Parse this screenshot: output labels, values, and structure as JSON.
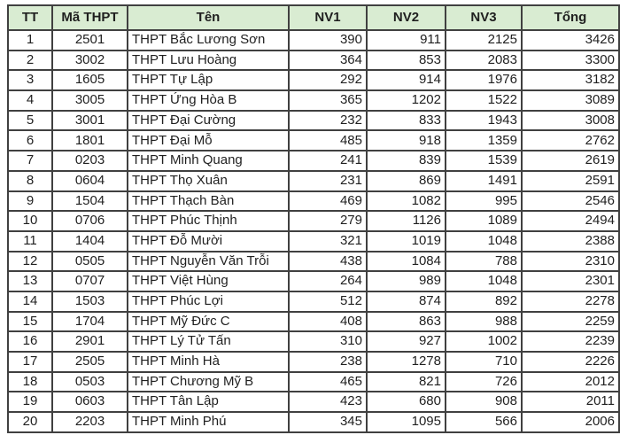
{
  "colors": {
    "header_bg": "#d9ecd2",
    "row_index_bg": "#d9ecd2",
    "border": "#404040",
    "text": "#1f1f1f"
  },
  "table": {
    "columns": [
      {
        "key": "tt",
        "label": "TT"
      },
      {
        "key": "ma",
        "label": "Mã THPT"
      },
      {
        "key": "ten",
        "label": "Tên"
      },
      {
        "key": "nv1",
        "label": "NV1"
      },
      {
        "key": "nv2",
        "label": "NV2"
      },
      {
        "key": "nv3",
        "label": "NV3"
      },
      {
        "key": "tong",
        "label": "Tổng"
      }
    ],
    "rows": [
      [
        "1",
        "2501",
        "THPT Bắc Lương Sơn",
        "390",
        "911",
        "2125",
        "3426"
      ],
      [
        "2",
        "3002",
        "THPT Lưu Hoàng",
        "364",
        "853",
        "2083",
        "3300"
      ],
      [
        "3",
        "1605",
        "THPT Tự Lập",
        "292",
        "914",
        "1976",
        "3182"
      ],
      [
        "4",
        "3005",
        "THPT Ứng Hòa B",
        "365",
        "1202",
        "1522",
        "3089"
      ],
      [
        "5",
        "3001",
        "THPT Đại Cường",
        "232",
        "833",
        "1943",
        "3008"
      ],
      [
        "6",
        "1801",
        "THPT Đại Mỗ",
        "485",
        "918",
        "1359",
        "2762"
      ],
      [
        "7",
        "0203",
        "THPT Minh Quang",
        "241",
        "839",
        "1539",
        "2619"
      ],
      [
        "8",
        "0604",
        "THPT Thọ Xuân",
        "231",
        "869",
        "1491",
        "2591"
      ],
      [
        "9",
        "1504",
        "THPT Thạch Bàn",
        "469",
        "1082",
        "995",
        "2546"
      ],
      [
        "10",
        "0706",
        "THPT Phúc Thịnh",
        "279",
        "1126",
        "1089",
        "2494"
      ],
      [
        "11",
        "1404",
        "THPT Đỗ Mười",
        "321",
        "1019",
        "1048",
        "2388"
      ],
      [
        "12",
        "0505",
        "THPT Nguyễn Văn Trỗi",
        "438",
        "1084",
        "788",
        "2310"
      ],
      [
        "13",
        "0707",
        "THPT Việt Hùng",
        "264",
        "989",
        "1048",
        "2301"
      ],
      [
        "14",
        "1503",
        "THPT Phúc Lợi",
        "512",
        "874",
        "892",
        "2278"
      ],
      [
        "15",
        "1704",
        "THPT Mỹ Đức C",
        "408",
        "863",
        "988",
        "2259"
      ],
      [
        "16",
        "2901",
        "THPT Lý Tử Tấn",
        "310",
        "927",
        "1002",
        "2239"
      ],
      [
        "17",
        "2505",
        "THPT Minh Hà",
        "238",
        "1278",
        "710",
        "2226"
      ],
      [
        "18",
        "0503",
        "THPT Chương Mỹ B",
        "465",
        "821",
        "726",
        "2012"
      ],
      [
        "19",
        "0603",
        "THPT Tân Lập",
        "423",
        "680",
        "908",
        "2011"
      ],
      [
        "20",
        "2203",
        "THPT Minh Phú",
        "345",
        "1095",
        "566",
        "2006"
      ]
    ]
  }
}
